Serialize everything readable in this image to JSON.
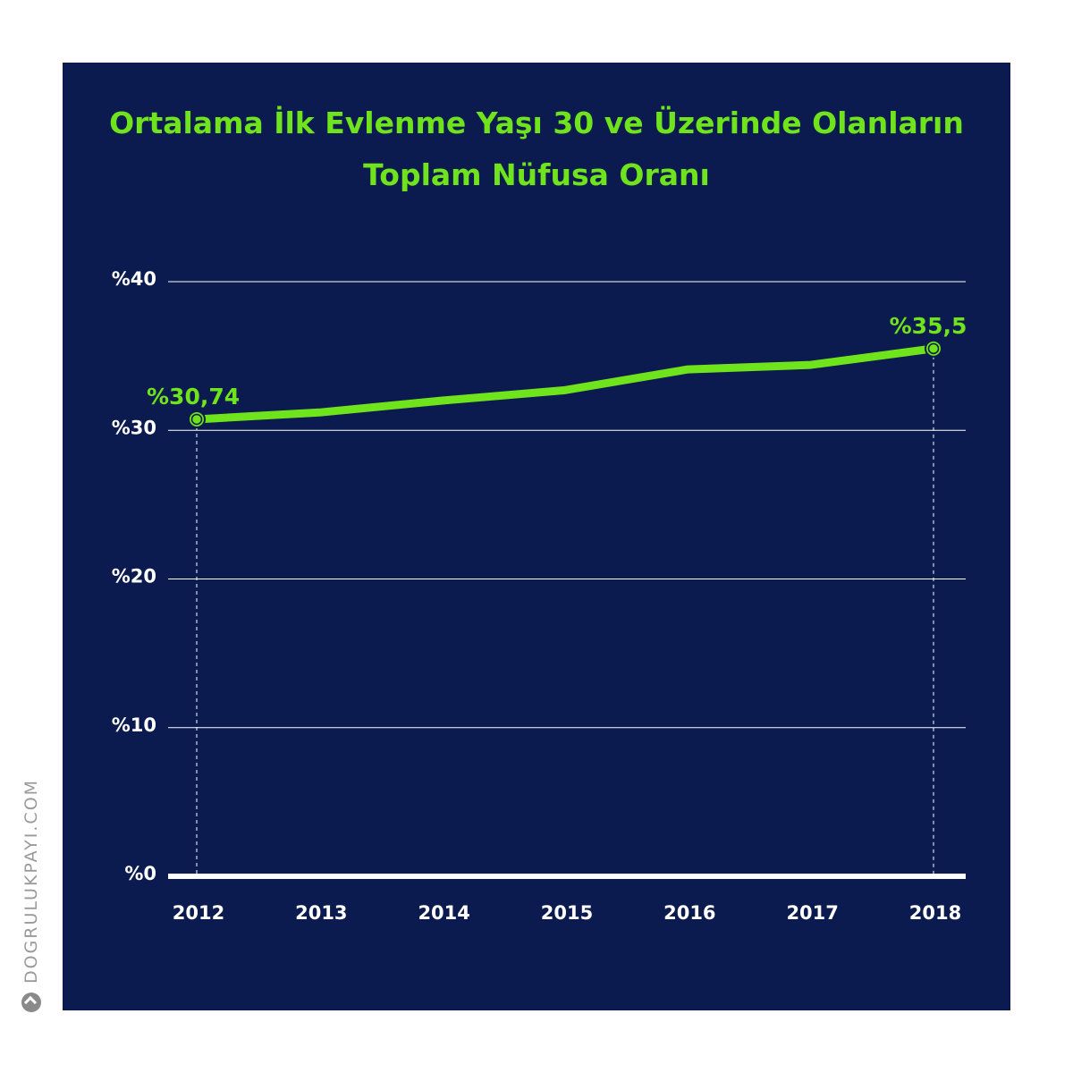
{
  "title": {
    "line1": "Ortalama İlk Evlenme Yaşı 30 ve Üzerinde Olanların",
    "line2": "Toplam Nüfusa Oranı"
  },
  "watermark": "DOGRULUKPAYI.COM",
  "colors": {
    "background": "#0b1b4f",
    "accent": "#6fe31b",
    "grid": "#ffffff",
    "page": "#ffffff"
  },
  "chart_data": {
    "type": "line",
    "title": "Ortalama İlk Evlenme Yaşı 30 ve Üzerinde Olanların Toplam Nüfusa Oranı",
    "x": [
      "2012",
      "2013",
      "2014",
      "2015",
      "2016",
      "2017",
      "2018"
    ],
    "series": [
      {
        "values": [
          30.74,
          31.2,
          32.0,
          32.7,
          34.1,
          34.4,
          35.5
        ]
      }
    ],
    "ylim": [
      0,
      40
    ],
    "yticks": [
      0,
      10,
      20,
      30,
      40
    ],
    "ytick_labels": [
      "%0",
      "%10",
      "%20",
      "%30",
      "%40"
    ],
    "annotations": [
      {
        "x": "2012",
        "label": "%30,74"
      },
      {
        "x": "2018",
        "label": "%35,5"
      }
    ],
    "grid": true,
    "legend": "none"
  }
}
